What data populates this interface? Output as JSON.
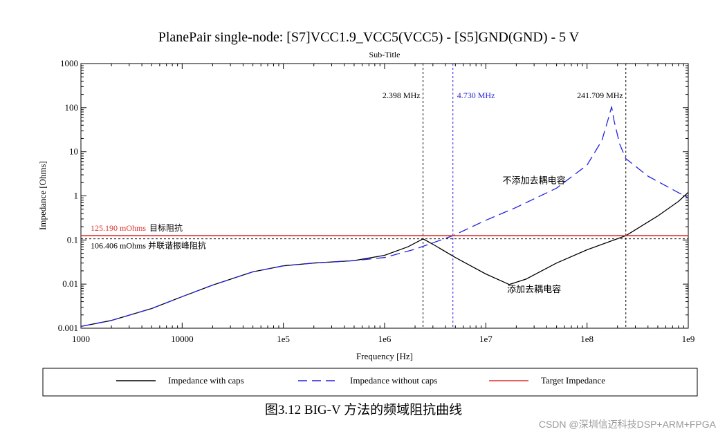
{
  "chart_data": {
    "type": "line",
    "title": "PlanePair single-node: [S7]VCC1.9_VCC5(VCC5) - [S5]GND(GND) - 5 V",
    "subtitle": "Sub-Title",
    "xlabel": "Frequency [Hz]",
    "ylabel": "Impedance [Ohms]",
    "xscale": "log",
    "yscale": "log",
    "xlim": [
      1000,
      1000000000
    ],
    "ylim": [
      0.001,
      1000
    ],
    "x_ticks": [
      {
        "value": 1000,
        "label": "1000"
      },
      {
        "value": 10000,
        "label": "10000"
      },
      {
        "value": 100000,
        "label": "1e5"
      },
      {
        "value": 1000000,
        "label": "1e6"
      },
      {
        "value": 10000000,
        "label": "1e7"
      },
      {
        "value": 100000000,
        "label": "1e8"
      },
      {
        "value": 1000000000,
        "label": "1e9"
      }
    ],
    "y_ticks": [
      {
        "value": 0.001,
        "label": "0.001"
      },
      {
        "value": 0.01,
        "label": "0.01"
      },
      {
        "value": 0.1,
        "label": "0.1"
      },
      {
        "value": 1,
        "label": "1"
      },
      {
        "value": 10,
        "label": "10"
      },
      {
        "value": 100,
        "label": "100"
      },
      {
        "value": 1000,
        "label": "1000"
      }
    ],
    "series": [
      {
        "name": "Impedance with caps",
        "color": "#000000",
        "dash": "solid",
        "points": [
          [
            1000,
            0.0011
          ],
          [
            2000,
            0.0015
          ],
          [
            5000,
            0.0028
          ],
          [
            10000,
            0.0052
          ],
          [
            20000,
            0.0095
          ],
          [
            50000,
            0.019
          ],
          [
            100000,
            0.026
          ],
          [
            200000,
            0.03
          ],
          [
            500000,
            0.034
          ],
          [
            1000000,
            0.045
          ],
          [
            1700000,
            0.07
          ],
          [
            2398000,
            0.106
          ],
          [
            3000000,
            0.08
          ],
          [
            5000000,
            0.04
          ],
          [
            10000000,
            0.017
          ],
          [
            17000000,
            0.0098
          ],
          [
            25000000,
            0.013
          ],
          [
            50000000,
            0.03
          ],
          [
            100000000,
            0.06
          ],
          [
            241709000,
            0.125
          ],
          [
            500000000,
            0.35
          ],
          [
            800000000,
            0.75
          ],
          [
            1000000000,
            1.2
          ]
        ]
      },
      {
        "name": "Impedance without caps",
        "color": "#2222dd",
        "dash": "dashed",
        "points": [
          [
            1000,
            0.0011
          ],
          [
            2000,
            0.0015
          ],
          [
            5000,
            0.0028
          ],
          [
            10000,
            0.0052
          ],
          [
            20000,
            0.0095
          ],
          [
            50000,
            0.019
          ],
          [
            100000,
            0.026
          ],
          [
            200000,
            0.03
          ],
          [
            500000,
            0.034
          ],
          [
            1000000,
            0.04
          ],
          [
            2000000,
            0.062
          ],
          [
            4730000,
            0.125
          ],
          [
            10000000,
            0.28
          ],
          [
            20000000,
            0.55
          ],
          [
            50000000,
            1.5
          ],
          [
            100000000,
            5
          ],
          [
            140000000,
            18
          ],
          [
            160000000,
            50
          ],
          [
            175000000,
            105
          ],
          [
            185000000,
            50
          ],
          [
            210000000,
            15
          ],
          [
            241709000,
            7
          ],
          [
            400000000,
            2.8
          ],
          [
            700000000,
            1.4
          ],
          [
            1000000000,
            0.9
          ]
        ]
      },
      {
        "name": "Target Impedance",
        "color": "#e03030",
        "dash": "solid",
        "points": [
          [
            1000,
            0.12519
          ],
          [
            1000000000,
            0.12519
          ]
        ]
      }
    ],
    "reference_lines": [
      {
        "orientation": "horizontal",
        "value": 0.106406,
        "color": "#000000",
        "label": "106.406 mOhms 并联谐振峰阻抗"
      },
      {
        "orientation": "vertical",
        "value": 2398000,
        "color": "#000000",
        "label": "2.398 MHz"
      },
      {
        "orientation": "vertical",
        "value": 4730000,
        "color": "#2222dd",
        "label": "4.730 MHz"
      },
      {
        "orientation": "vertical",
        "value": 241709000,
        "color": "#000000",
        "label": "241.709 MHz"
      }
    ],
    "target_label": {
      "value_text": "125.190 mOhms",
      "name_text": "目标阻抗"
    },
    "annotations": [
      {
        "text": "不添加去耦电容",
        "x": 30000000,
        "y": 1.9
      },
      {
        "text": "添加去耦电容",
        "x": 30000000,
        "y": 0.0065
      }
    ],
    "legend": {
      "placement": "bottom",
      "entries": [
        "Impedance with caps",
        "Impedance without caps",
        "Target Impedance"
      ]
    }
  },
  "caption": "图3.12  BIG-V 方法的频域阻抗曲线",
  "watermark": "CSDN @深圳信迈科技DSP+ARM+FPGA"
}
